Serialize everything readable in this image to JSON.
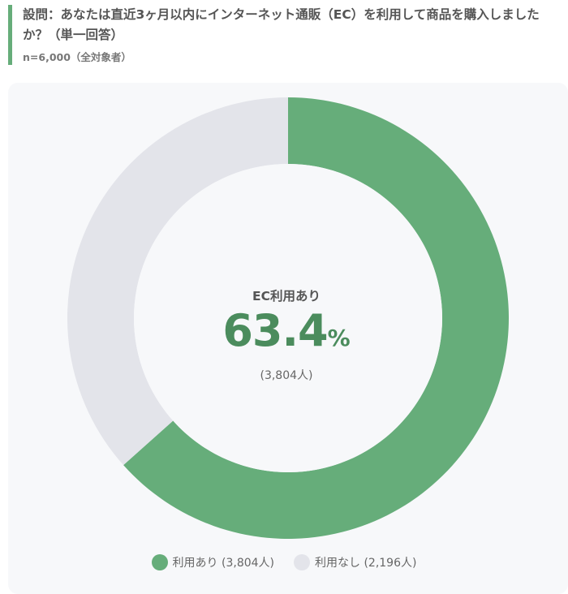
{
  "question": {
    "text": "設問：あなたは直近3ヶ月以内にインターネット通販（EC）を利用して商品を購入しましたか？（単一回答）",
    "sample": "n=6,000（全対象者）"
  },
  "center": {
    "label": "EC利用あり",
    "value": "63.4",
    "unit": "%",
    "count": "(3,804人)"
  },
  "chart_data": {
    "type": "pie",
    "donut": true,
    "categories": [
      "利用あり",
      "利用なし"
    ],
    "values": [
      3804,
      2196
    ],
    "percent": [
      63.4,
      36.6
    ],
    "colors": [
      "#66ad7a",
      "#e3e4ea"
    ],
    "legend_position": "bottom-center"
  },
  "legend": [
    {
      "label": "利用あり (3,804人)",
      "color": "#66ad7a"
    },
    {
      "label": "利用なし (2,196人)",
      "color": "#e3e4ea"
    }
  ]
}
